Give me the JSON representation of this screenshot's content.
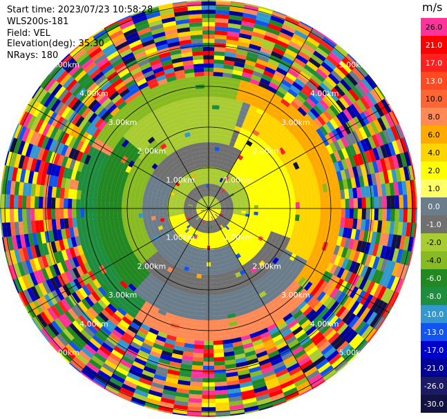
{
  "info": {
    "start_time": "Start time: 2023/07/23 10:58:28",
    "instrument": "WLS200s-181",
    "field": "Field: VEL",
    "elevation": "Elevation(deg): 35.30",
    "nrays": "NRays: 180"
  },
  "range_labels": [
    "1.00km",
    "2.00km",
    "3.00km",
    "4.00km",
    "5.00km"
  ],
  "colorbar": {
    "title": "m/s",
    "labels": [
      "26.0",
      "21.0",
      "17.0",
      "13.0",
      "10.0",
      "8.0",
      "6.0",
      "4.0",
      "2.0",
      "1.0",
      "0.0",
      "-1.0",
      "-2.0",
      "-4.0",
      "-6.0",
      "-8.0",
      "-10.0",
      "-13.0",
      "-17.0",
      "-21.0",
      "-26.0",
      "-30.0"
    ],
    "colors": [
      "#ff3399",
      "#ff0000",
      "#ff2020",
      "#ff4a22",
      "#ff6633",
      "#ff8a55",
      "#ffaa00",
      "#ffd500",
      "#ffff00",
      "#ffff66",
      "#6b7c8a",
      "#707070",
      "#aacc33",
      "#88bb22",
      "#228822",
      "#1e8e3e",
      "#3399cc",
      "#1155ee",
      "#0000cc",
      "#000099",
      "#1a1a66",
      "#111144"
    ]
  }
}
